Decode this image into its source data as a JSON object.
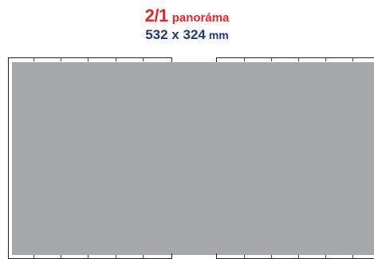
{
  "format": {
    "fraction": "2/1",
    "name": "panoráma",
    "size": "532 x 324",
    "unit": "mm"
  },
  "colors": {
    "fraction": "#e3262f",
    "name": "#e3262f",
    "size": "#1f3c78",
    "area": "#a6a8ab",
    "frame": "#222222",
    "ticks": "#444444"
  }
}
